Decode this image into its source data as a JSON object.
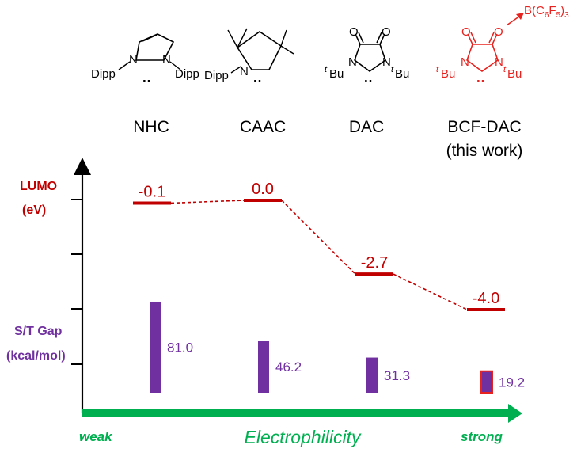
{
  "colors": {
    "lumo": "#c00000",
    "gap": "#7030a0",
    "axis_arrow": "#00b050",
    "bcf_red": "#e8231f",
    "ink": "#000000"
  },
  "structures": [
    {
      "name": "NHC",
      "atoms": {
        "left_sub": "Dipp",
        "n1": "N",
        "n2": "N",
        "right_sub": "Dipp",
        "lone_pair": "··"
      }
    },
    {
      "name": "CAAC",
      "atoms": {
        "left_sub": "Dipp",
        "n1": "N",
        "lone_pair": "··"
      }
    },
    {
      "name": "DAC",
      "atoms": {
        "o1": "O",
        "o2": "O",
        "left_sub": "Bu",
        "left_sup": "t",
        "n1": "N",
        "n2": "N",
        "right_sub": "Bu",
        "right_sup": "t",
        "lone_pair": "··"
      }
    },
    {
      "name": "BCF-DAC",
      "note": "(this work)",
      "atoms": {
        "o1": "O",
        "o2": "O",
        "left_sub": "Bu",
        "left_sup": "t",
        "n1": "N",
        "n2": "N",
        "right_sub": "Bu",
        "right_sup": "t",
        "lone_pair": "··",
        "lewis_acid": {
          "b": "B(C",
          "c6": "6",
          "f": "F",
          "f5": "5",
          "close": ")",
          "sub3": "3"
        }
      }
    }
  ],
  "axis_titles": {
    "lumo_line1": "LUMO",
    "lumo_line2": "(eV)",
    "gap_line1": "S/T Gap",
    "gap_line2": "(kcal/mol)"
  },
  "x_axis": {
    "left": "weak",
    "center": "Electrophilicity",
    "right": "strong"
  },
  "chart_data": {
    "type": "bar",
    "categories": [
      "NHC",
      "CAAC",
      "DAC",
      "BCF-DAC"
    ],
    "lumo_ev": [
      -0.1,
      0.0,
      -2.7,
      -4.0
    ],
    "lumo_labels": [
      "-0.1",
      "0.0",
      "-2.7",
      "-4.0"
    ],
    "st_gap_kcal_mol": [
      81.0,
      46.2,
      31.3,
      19.2
    ],
    "st_gap_labels": [
      "81.0",
      "46.2",
      "31.3",
      "19.2"
    ],
    "highlight_last_gap": true
  }
}
